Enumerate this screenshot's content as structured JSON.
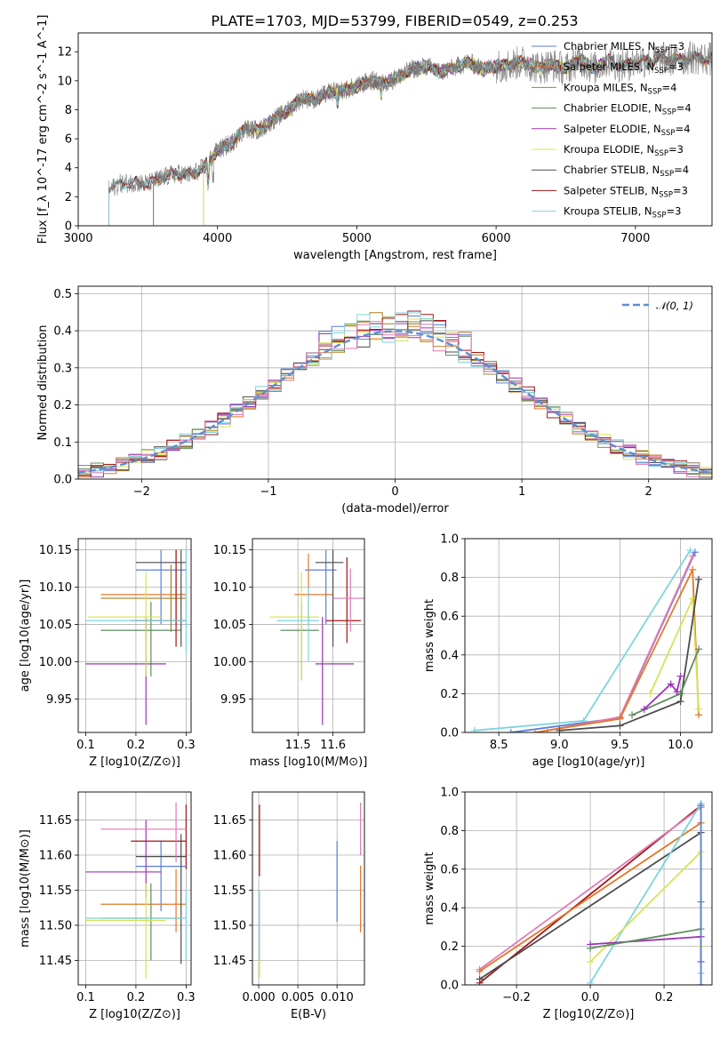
{
  "title": "PLATE=1703, MJD=53799, FIBERID=0549, z=0.253",
  "colors": {
    "Chabrier MILES": "#5b7fd6",
    "Salpeter MILES": "#e2782a",
    "Kroupa MILES": "#b07d1e",
    "Chabrier ELODIE": "#5e8c5e",
    "Salpeter ELODIE": "#9b33b5",
    "Kroupa ELODIE": "#d7e254",
    "Chabrier STELIB": "#4d4d4d",
    "Salpeter STELIB": "#a01616",
    "Kroupa STELIB": "#7fd3e0",
    "extra1": "#e07ab5",
    "extra2": "#3a9a3a",
    "normal": "#5b8fd6"
  },
  "chart_data": [
    {
      "id": "spectrum",
      "type": "line",
      "xlabel": "wavelength [Angstrom, rest frame]",
      "ylabel": "Flux [f_λ 10^-17 erg cm^-2 s^-1 A^-1]",
      "xlim": [
        3000,
        7550
      ],
      "ylim": [
        0,
        13.3
      ],
      "xticks": [
        3000,
        4000,
        5000,
        6000,
        7000
      ],
      "yticks": [
        0,
        2,
        4,
        6,
        8,
        10,
        12
      ],
      "grid": false,
      "legend_position": "right",
      "series": [
        {
          "name": "Chabrier MILES",
          "nssp": "3",
          "start": 3540,
          "end": 7550
        },
        {
          "name": "Salpeter MILES",
          "nssp": "3",
          "start": 3540,
          "end": 7550
        },
        {
          "name": "Kroupa MILES",
          "nssp": "4",
          "start": 3540,
          "end": 7550
        },
        {
          "name": "Chabrier ELODIE",
          "nssp": "4",
          "start": 3900,
          "end": 6780
        },
        {
          "name": "Salpeter ELODIE",
          "nssp": "4",
          "start": 3900,
          "end": 6780
        },
        {
          "name": "Kroupa ELODIE",
          "nssp": "3",
          "start": 3900,
          "end": 6780
        },
        {
          "name": "Chabrier STELIB",
          "nssp": "4",
          "start": 3220,
          "end": 7550
        },
        {
          "name": "Salpeter STELIB",
          "nssp": "3",
          "start": 3220,
          "end": 7550
        },
        {
          "name": "Kroupa STELIB",
          "nssp": "3",
          "start": 3220,
          "end": 7550
        }
      ],
      "envelope": {
        "x": [
          3220,
          3300,
          3400,
          3500,
          3600,
          3700,
          3800,
          3900,
          4000,
          4100,
          4200,
          4300,
          4400,
          4500,
          4600,
          4700,
          4800,
          4900,
          5000,
          5100,
          5200,
          5300,
          5400,
          5500,
          5600,
          5700,
          5800,
          5900,
          6000,
          6100,
          6200,
          6300,
          6400,
          6500,
          6600,
          6700,
          6800,
          6900,
          7000,
          7100,
          7200,
          7300,
          7400,
          7550
        ],
        "y": [
          2.5,
          2.9,
          3.0,
          2.9,
          3.3,
          3.6,
          3.5,
          4.0,
          5.2,
          5.7,
          6.7,
          6.6,
          7.3,
          7.9,
          8.8,
          8.7,
          9.2,
          9.3,
          9.6,
          10.0,
          9.8,
          10.3,
          10.8,
          11.0,
          10.6,
          10.9,
          11.3,
          10.8,
          11.0,
          11.1,
          11.3,
          10.9,
          11.1,
          10.8,
          11.5,
          10.8,
          11.4,
          11.0,
          11.3,
          11.4,
          11.5,
          11.4,
          11.6,
          11.5
        ]
      }
    },
    {
      "id": "residuals",
      "type": "line",
      "xlabel": "(data-model)/error",
      "ylabel": "Normed distribution",
      "xlim": [
        -2.5,
        2.5
      ],
      "ylim": [
        0,
        0.52
      ],
      "xticks": [
        -2,
        -1,
        0,
        1,
        2
      ],
      "yticks": [
        0.0,
        0.1,
        0.2,
        0.3,
        0.4,
        0.5
      ],
      "grid": true,
      "legend_position": "top-right",
      "reference": {
        "name": "𝒩(0, 1)",
        "mean": 0,
        "sigma": 1
      },
      "series_note": "step histograms per model, bin width 0.1"
    },
    {
      "id": "age-vs-Z",
      "type": "scatter",
      "xlabel": "Z [log10(Z/Z⊙)]",
      "ylabel": "age [log10(age/yr)]",
      "xlim": [
        0.085,
        0.31
      ],
      "ylim": [
        9.905,
        10.165
      ],
      "xticks": [
        0.1,
        0.2,
        0.3
      ],
      "yticks": [
        9.95,
        10.0,
        10.05,
        10.1,
        10.15
      ],
      "grid": true,
      "points": [
        {
          "model": "Chabrier MILES",
          "x": 0.25,
          "xerr": [
            0.2,
            0.3
          ],
          "y": 10.123,
          "yerr": [
            10.05,
            10.15
          ]
        },
        {
          "model": "Salpeter MILES",
          "x": 0.28,
          "xerr": [
            0.13,
            0.3
          ],
          "y": 10.09,
          "yerr": [
            10.05,
            10.15
          ]
        },
        {
          "model": "Kroupa MILES",
          "x": 0.27,
          "xerr": [
            0.13,
            0.3
          ],
          "y": 10.085,
          "yerr": [
            10.04,
            10.13
          ]
        },
        {
          "model": "Chabrier ELODIE",
          "x": 0.23,
          "xerr": [
            0.13,
            0.29
          ],
          "y": 10.042,
          "yerr": [
            9.98,
            10.08
          ]
        },
        {
          "model": "Salpeter ELODIE",
          "x": 0.22,
          "xerr": [
            0.1,
            0.26
          ],
          "y": 9.997,
          "yerr": [
            9.915,
            10.06
          ]
        },
        {
          "model": "Kroupa ELODIE",
          "x": 0.22,
          "xerr": [
            0.105,
            0.25
          ],
          "y": 10.06,
          "yerr": [
            9.98,
            10.12
          ]
        },
        {
          "model": "Chabrier STELIB",
          "x": 0.29,
          "xerr": [
            0.2,
            0.3
          ],
          "y": 10.133,
          "yerr": [
            10.02,
            10.15
          ]
        },
        {
          "model": "Salpeter STELIB",
          "x": 0.28,
          "xerr": [
            0.19,
            0.3
          ],
          "y": 10.055,
          "yerr": [
            10.02,
            10.15
          ]
        },
        {
          "model": "Kroupa STELIB",
          "x": 0.3,
          "xerr": [
            0.1,
            0.3
          ],
          "y": 10.055,
          "yerr": [
            10.01,
            10.15
          ]
        }
      ]
    },
    {
      "id": "age-vs-mass",
      "type": "scatter",
      "xlabel": "mass [log10(M/M⊙)]",
      "ylabel": "",
      "xlim": [
        11.37,
        11.69
      ],
      "ylim": [
        9.905,
        10.165
      ],
      "xticks": [
        11.5,
        11.6
      ],
      "yticks": [
        9.95,
        10.0,
        10.05,
        10.1,
        10.15
      ],
      "grid": true,
      "points": [
        {
          "model": "Chabrier MILES",
          "x": 11.58,
          "xerr": [
            11.52,
            11.61
          ],
          "y": 10.123,
          "yerr": [
            10.05,
            10.15
          ]
        },
        {
          "model": "Salpeter MILES",
          "x": 11.53,
          "xerr": [
            11.49,
            11.6
          ],
          "y": 10.09,
          "yerr": [
            10.05,
            10.145
          ]
        },
        {
          "model": "Chabrier ELODIE",
          "x": 11.51,
          "xerr": [
            11.45,
            11.56
          ],
          "y": 10.042,
          "yerr": [
            9.975,
            10.08
          ]
        },
        {
          "model": "Salpeter ELODIE",
          "x": 11.57,
          "xerr": [
            11.55,
            11.66
          ],
          "y": 9.997,
          "yerr": [
            9.915,
            10.06
          ]
        },
        {
          "model": "Kroupa ELODIE",
          "x": 11.51,
          "xerr": [
            11.42,
            11.56
          ],
          "y": 10.06,
          "yerr": [
            9.975,
            10.12
          ]
        },
        {
          "model": "Chabrier STELIB",
          "x": 11.6,
          "xerr": [
            11.55,
            11.63
          ],
          "y": 10.133,
          "yerr": [
            10.02,
            10.15
          ]
        },
        {
          "model": "Salpeter STELIB",
          "x": 11.64,
          "xerr": [
            11.58,
            11.68
          ],
          "y": 10.055,
          "yerr": [
            10.025,
            10.14
          ]
        },
        {
          "model": "Kroupa STELIB",
          "x": 11.53,
          "xerr": [
            11.44,
            11.56
          ],
          "y": 10.055,
          "yerr": [
            10.0,
            10.1
          ]
        },
        {
          "model": "extra1",
          "x": 11.65,
          "xerr": [
            11.6,
            11.69
          ],
          "y": 10.085,
          "yerr": [
            10.04,
            10.125
          ]
        }
      ]
    },
    {
      "id": "weight-vs-age",
      "type": "line",
      "xlabel": "age [log10(age/yr)]",
      "ylabel": "mass weight",
      "xlim": [
        8.22,
        10.26
      ],
      "ylim": [
        0,
        1.0
      ],
      "xticks": [
        8.5,
        9.0,
        9.5,
        10.0
      ],
      "yticks": [
        0.0,
        0.2,
        0.4,
        0.6,
        0.8,
        1.0
      ],
      "grid": true,
      "series": [
        {
          "model": "Kroupa STELIB",
          "x": [
            8.3,
            9.2,
            10.08
          ],
          "y": [
            0.01,
            0.06,
            0.94
          ]
        },
        {
          "model": "Chabrier MILES",
          "x": [
            8.6,
            9.5,
            10.12
          ],
          "y": [
            0.0,
            0.075,
            0.93
          ]
        },
        {
          "model": "extra1",
          "x": [
            8.9,
            9.5,
            10.1
          ],
          "y": [
            0.01,
            0.08,
            0.91
          ]
        },
        {
          "model": "Salpeter MILES",
          "x": [
            8.8,
            9.5,
            10.1,
            10.15
          ],
          "y": [
            0.0,
            0.07,
            0.84,
            0.09
          ]
        },
        {
          "model": "Kroupa ELODIE",
          "x": [
            9.75,
            10.1,
            10.15
          ],
          "y": [
            0.2,
            0.69,
            0.12
          ]
        },
        {
          "model": "Chabrier STELIB",
          "x": [
            9.0,
            9.5,
            10.0,
            10.15
          ],
          "y": [
            0.01,
            0.035,
            0.16,
            0.79
          ]
        },
        {
          "model": "Chabrier ELODIE",
          "x": [
            9.6,
            10.0,
            10.15
          ],
          "y": [
            0.09,
            0.2,
            0.43
          ]
        },
        {
          "model": "Salpeter ELODIE",
          "x": [
            9.7,
            9.92,
            9.97,
            10.0
          ],
          "y": [
            0.12,
            0.25,
            0.21,
            0.29
          ]
        }
      ]
    },
    {
      "id": "mass-vs-Z",
      "type": "scatter",
      "xlabel": "Z [log10(Z/Z⊙)]",
      "ylabel": "mass [log10(M/M⊙)]",
      "xlim": [
        0.085,
        0.31
      ],
      "ylim": [
        11.415,
        11.69
      ],
      "xticks": [
        0.1,
        0.2,
        0.3
      ],
      "yticks": [
        11.45,
        11.5,
        11.55,
        11.6,
        11.65
      ],
      "grid": true,
      "points": [
        {
          "model": "Chabrier MILES",
          "x": 0.25,
          "xerr": [
            0.2,
            0.3
          ],
          "y": 11.584,
          "yerr": [
            11.52,
            11.62
          ]
        },
        {
          "model": "Salpeter MILES",
          "x": 0.28,
          "xerr": [
            0.13,
            0.3
          ],
          "y": 11.53,
          "yerr": [
            11.49,
            11.58
          ]
        },
        {
          "model": "Chabrier ELODIE",
          "x": 0.23,
          "xerr": [
            0.13,
            0.29
          ],
          "y": 11.51,
          "yerr": [
            11.45,
            11.56
          ]
        },
        {
          "model": "Salpeter ELODIE",
          "x": 0.22,
          "xerr": [
            0.1,
            0.25
          ],
          "y": 11.576,
          "yerr": [
            11.54,
            11.65
          ]
        },
        {
          "model": "Kroupa ELODIE",
          "x": 0.22,
          "xerr": [
            0.1,
            0.26
          ],
          "y": 11.507,
          "yerr": [
            11.425,
            11.56
          ]
        },
        {
          "model": "Chabrier STELIB",
          "x": 0.29,
          "xerr": [
            0.2,
            0.3
          ],
          "y": 11.598,
          "yerr": [
            11.445,
            11.63
          ]
        },
        {
          "model": "Salpeter STELIB",
          "x": 0.3,
          "xerr": [
            0.19,
            0.3
          ],
          "y": 11.62,
          "yerr": [
            11.58,
            11.672
          ]
        },
        {
          "model": "Kroupa STELIB",
          "x": 0.3,
          "xerr": [
            0.1,
            0.3
          ],
          "y": 11.51,
          "yerr": [
            11.45,
            11.55
          ]
        },
        {
          "model": "extra1",
          "x": 0.28,
          "xerr": [
            0.13,
            0.3
          ],
          "y": 11.637,
          "yerr": [
            11.59,
            11.675
          ]
        }
      ]
    },
    {
      "id": "mass-vs-EBV",
      "type": "scatter",
      "xlabel": "E(B-V)",
      "ylabel": "",
      "xlim": [
        -0.0008,
        0.0135
      ],
      "ylim": [
        11.415,
        11.69
      ],
      "xticks": [
        0.0,
        0.005,
        0.01
      ],
      "xticklabels": [
        "0.000",
        "0.005",
        "0.010"
      ],
      "yticks": [
        11.45,
        11.5,
        11.55,
        11.6,
        11.65
      ],
      "grid": true,
      "points": [
        {
          "model": "Salpeter STELIB",
          "x": 0.0001,
          "y": 11.62,
          "yerr": [
            11.57,
            11.672
          ]
        },
        {
          "model": "Kroupa ELODIE",
          "x": 0.0001,
          "y": 11.45,
          "yerr": [
            11.425,
            11.48
          ]
        },
        {
          "model": "Kroupa STELIB",
          "x": 0.0001,
          "y": 11.51,
          "yerr": [
            11.45,
            11.55
          ]
        },
        {
          "model": "Chabrier MILES",
          "x": 0.01,
          "y": 11.56,
          "yerr": [
            11.505,
            11.62
          ]
        },
        {
          "model": "extra1",
          "x": 0.013,
          "y": 11.637,
          "yerr": [
            11.6,
            11.675
          ]
        },
        {
          "model": "Salpeter MILES",
          "x": 0.013,
          "y": 11.53,
          "yerr": [
            11.49,
            11.585
          ]
        }
      ]
    },
    {
      "id": "weight-vs-Z",
      "type": "line",
      "xlabel": "Z [log10(Z/Z⊙)]",
      "ylabel": "mass weight",
      "xlim": [
        -0.34,
        0.33
      ],
      "ylim": [
        0,
        1.0
      ],
      "xticks": [
        -0.2,
        0.0,
        0.2
      ],
      "xticklabels": [
        "−0.2",
        "0.0",
        "0.2"
      ],
      "yticks": [
        0.0,
        0.2,
        0.4,
        0.6,
        0.8,
        1.0
      ],
      "grid": true,
      "series": [
        {
          "model": "Salpeter STELIB",
          "x": [
            -0.3,
            0.3
          ],
          "y": [
            0.01,
            0.93
          ]
        },
        {
          "model": "extra1",
          "x": [
            -0.3,
            0.3
          ],
          "y": [
            0.08,
            0.92
          ]
        },
        {
          "model": "Salpeter MILES",
          "x": [
            -0.3,
            0.3
          ],
          "y": [
            0.07,
            0.84
          ]
        },
        {
          "model": "Chabrier STELIB",
          "x": [
            -0.3,
            0.3
          ],
          "y": [
            0.03,
            0.79
          ]
        },
        {
          "model": "Kroupa STELIB",
          "x": [
            0.0,
            0.3,
            0.3
          ],
          "y": [
            0.01,
            0.94,
            0.06
          ]
        },
        {
          "model": "Kroupa ELODIE",
          "x": [
            0.0,
            0.3,
            0.3
          ],
          "y": [
            0.12,
            0.69,
            0.2
          ]
        },
        {
          "model": "Salpeter ELODIE",
          "x": [
            0.0,
            0.3,
            0.3
          ],
          "y": [
            0.21,
            0.25,
            0.12
          ]
        },
        {
          "model": "Chabrier ELODIE",
          "x": [
            0.0,
            0.3,
            0.3
          ],
          "y": [
            0.19,
            0.29,
            0.43
          ]
        },
        {
          "model": "Chabrier MILES",
          "x": [
            0.3,
            0.3
          ],
          "y": [
            0.93,
            0.0
          ]
        }
      ]
    }
  ]
}
